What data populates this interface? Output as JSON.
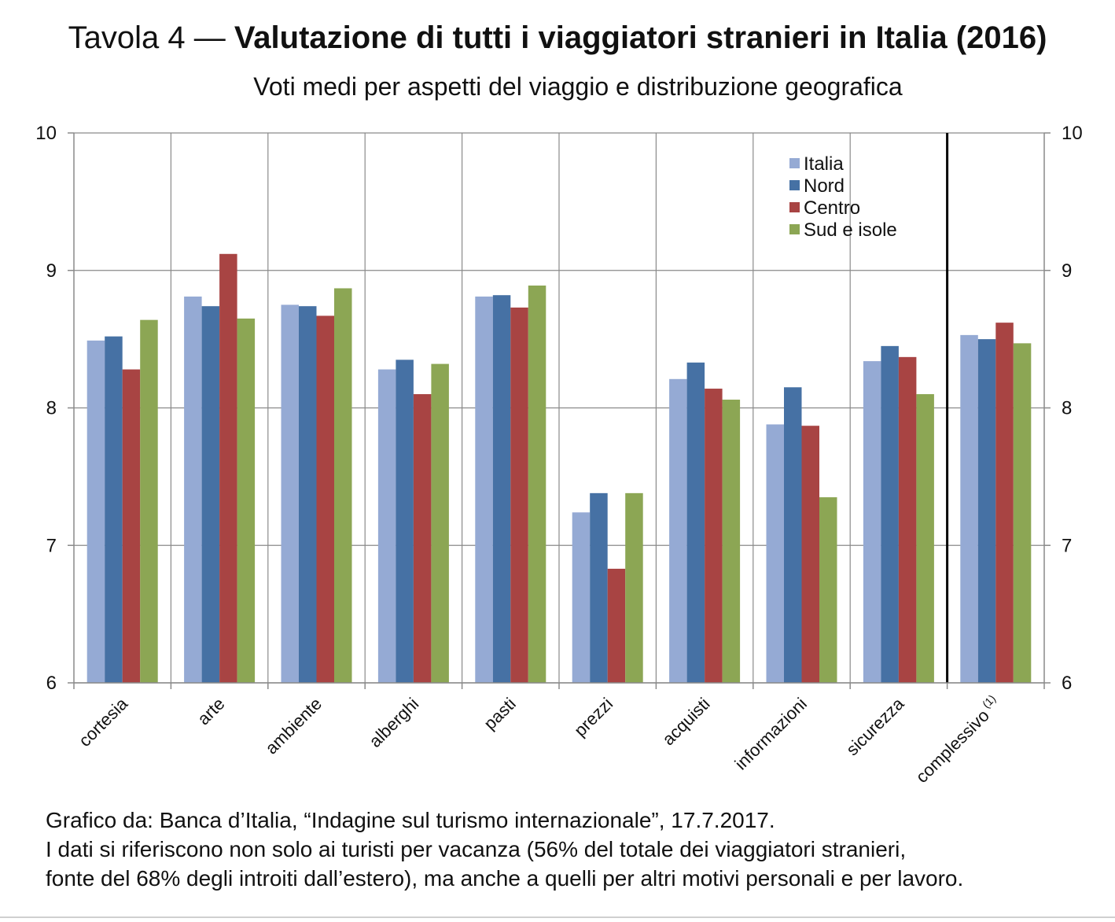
{
  "title": {
    "prefix": "Tavola 4 — ",
    "main": "Valutazione di tutti i viaggiatori stranieri in Italia (2016)"
  },
  "chart_data": {
    "type": "bar",
    "title": "Valutazione di tutti i viaggiatori stranieri in Italia (2016)",
    "subtitle": "Voti medi per aspetti del viaggio e distribuzione geografica",
    "xlabel": "",
    "ylabel": "",
    "ylim": [
      6,
      10
    ],
    "yticks": [
      6,
      7,
      8,
      9,
      10
    ],
    "grid": true,
    "legend_position": "top-right",
    "categories": [
      "cortesia",
      "arte",
      "ambiente",
      "alberghi",
      "pasti",
      "prezzi",
      "acquisti",
      "informazioni",
      "sicurezza",
      "complessivo"
    ],
    "category_superscripts": [
      "",
      "",
      "",
      "",
      "",
      "",
      "",
      "",
      "",
      "(1)"
    ],
    "series": [
      {
        "name": "Italia",
        "color": "#95AAD4",
        "values": [
          8.49,
          8.81,
          8.75,
          8.28,
          8.81,
          7.24,
          8.21,
          7.88,
          8.34,
          8.53
        ]
      },
      {
        "name": "Nord",
        "color": "#4671A4",
        "values": [
          8.52,
          8.74,
          8.74,
          8.35,
          8.82,
          7.38,
          8.33,
          8.15,
          8.45,
          8.5
        ]
      },
      {
        "name": "Centro",
        "color": "#A84443",
        "values": [
          8.28,
          9.12,
          8.67,
          8.1,
          8.73,
          6.83,
          8.14,
          7.87,
          8.37,
          8.62
        ]
      },
      {
        "name": "Sud e isole",
        "color": "#8CA654",
        "values": [
          8.64,
          8.65,
          8.87,
          8.32,
          8.89,
          7.38,
          8.06,
          7.35,
          8.1,
          8.47
        ]
      }
    ]
  },
  "source": {
    "line1": "Grafico da: Banca d’Italia, “Indagine sul turismo internazionale”, 17.7.2017.",
    "line2": "I dati si riferiscono non solo ai turisti per vacanza (56% del totale dei viaggiatori stranieri,",
    "line3": "fonte del 68% degli introiti dall’estero), ma anche a quelli per altri motivi personali e per lavoro."
  }
}
